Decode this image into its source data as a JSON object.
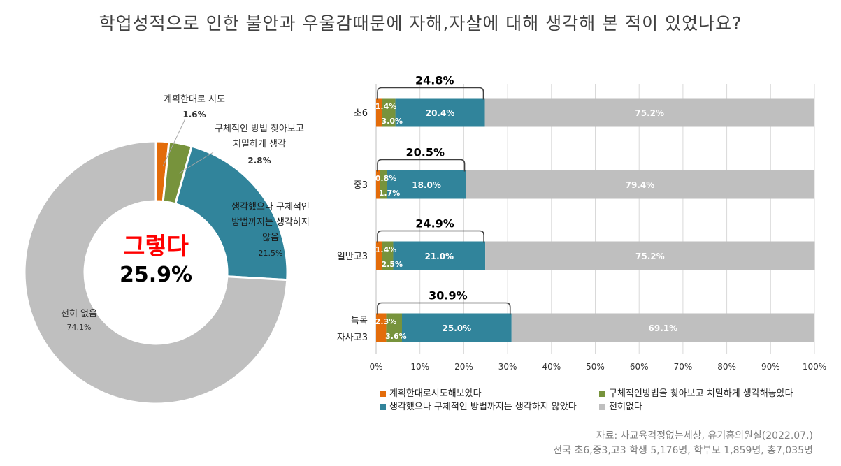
{
  "title": "학업성적으로 인한 불안과 우울감때문에 자해,자살에 대해 생각해 본 적이 있었나요?",
  "colors": {
    "plan": "#e36c0a",
    "method": "#77933c",
    "thought": "#31849b",
    "never": "#bfbfbf",
    "center_label": "#ff0000"
  },
  "chart_data": [
    {
      "type": "pie",
      "subtype": "donut",
      "center_label": "그렇다",
      "center_value": "25.9%",
      "slices": [
        {
          "label_lines": [
            "계획한대로 시도"
          ],
          "value": 1.6,
          "pct": "1.6%",
          "color_key": "plan"
        },
        {
          "label_lines": [
            "구체적인 방법 찾아보고",
            "치밀하게 생각"
          ],
          "value": 2.8,
          "pct": "2.8%",
          "color_key": "method"
        },
        {
          "label_lines": [
            "생각했으나 구체적인",
            "방법까지는 생각하지",
            "않음"
          ],
          "value": 21.5,
          "pct": "21.5%",
          "color_key": "thought"
        },
        {
          "label_lines": [
            "전혀 없음"
          ],
          "value": 74.1,
          "pct": "74.1%",
          "color_key": "never"
        }
      ]
    },
    {
      "type": "bar",
      "orientation": "horizontal",
      "stacked": "percent",
      "categories": [
        [
          "초6"
        ],
        [
          "중3"
        ],
        [
          "일반고3"
        ],
        [
          "특목",
          "자사고3"
        ]
      ],
      "series": [
        {
          "name": "계획한대로시도해보았다",
          "color_key": "plan",
          "values": [
            1.4,
            0.8,
            1.4,
            2.3
          ],
          "labels": [
            "1.4%",
            "0.8%",
            "1.4%",
            "2.3%"
          ]
        },
        {
          "name": "구체적인방법을 찾아보고 치밀하게 생각해놓았다",
          "color_key": "method",
          "values": [
            3.0,
            1.7,
            2.5,
            3.6
          ],
          "labels": [
            "3.0%",
            "1.7%",
            "2.5%",
            "3.6%"
          ]
        },
        {
          "name": "생각했으나 구체적인 방법까지는 생각하지 않았다",
          "color_key": "thought",
          "values": [
            20.4,
            18.0,
            21.0,
            25.0
          ],
          "labels": [
            "20.4%",
            "18.0%",
            "21.0%",
            "25.0%"
          ]
        },
        {
          "name": "전혀없다",
          "color_key": "never",
          "values": [
            75.2,
            79.4,
            75.2,
            69.1
          ],
          "labels": [
            "75.2%",
            "79.4%",
            "75.2%",
            "69.1%"
          ]
        }
      ],
      "bracket_totals": [
        "24.8%",
        "20.5%",
        "24.9%",
        "30.9%"
      ],
      "xlim": [
        0,
        100
      ],
      "xticks": [
        "0%",
        "10%",
        "20%",
        "30%",
        "40%",
        "50%",
        "60%",
        "70%",
        "80%",
        "90%",
        "100%"
      ],
      "grid": true,
      "legend_position": "bottom"
    }
  ],
  "source": {
    "line1": "자료: 사교육걱정없는세상, 유기홍의원실(2022.07.)",
    "line2": "전국 초6,중3,고3 학생 5,176명, 학부모 1,859명, 총7,035명"
  }
}
